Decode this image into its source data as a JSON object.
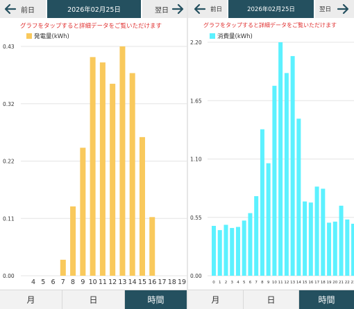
{
  "left": {
    "prev_label": "前日",
    "date": "2026年02月25日",
    "next_label": "翌日",
    "notice": "グラフをタップすると詳細データをご覧いただけます",
    "chart_data": {
      "type": "bar",
      "legend": "発電量(kWh)",
      "color": "#f9c95c",
      "ylim": [
        0,
        0.43
      ],
      "yticks": [
        "0.43",
        "0.32",
        "0.22",
        "0.11",
        "0.00"
      ],
      "categories": [
        "4",
        "5",
        "6",
        "7",
        "8",
        "9",
        "10",
        "11",
        "12",
        "13",
        "14",
        "15",
        "16",
        "17",
        "18",
        "19"
      ],
      "series": [
        {
          "name": "発電量(kWh)",
          "values": [
            0,
            0,
            0,
            0.03,
            0.13,
            0.24,
            0.41,
            0.4,
            0.36,
            0.43,
            0.38,
            0.26,
            0.11,
            0,
            0,
            0
          ]
        }
      ]
    },
    "tabs": [
      {
        "label": "月",
        "active": false
      },
      {
        "label": "日",
        "active": false
      },
      {
        "label": "時間",
        "active": true
      }
    ]
  },
  "right": {
    "prev_label": "前日",
    "date": "2026年02月25日",
    "next_label": "翌日",
    "notice": "グラフをタップすると詳細データをご覧いただけます",
    "chart_data": {
      "type": "bar",
      "legend": "消費量(kWh)",
      "color": "#5cf1ff",
      "ylim": [
        0,
        2.2
      ],
      "yticks": [
        "2.20",
        "1.65",
        "1.10",
        "0.55",
        "0.00"
      ],
      "categories": [
        "0",
        "1",
        "2",
        "3",
        "4",
        "5",
        "6",
        "7",
        "8",
        "9",
        "10",
        "11",
        "12",
        "13",
        "14",
        "15",
        "16",
        "17",
        "18",
        "19",
        "20",
        "21",
        "22",
        "23"
      ],
      "series": [
        {
          "name": "消費量(kWh)",
          "values": [
            0.47,
            0.43,
            0.48,
            0.45,
            0.46,
            0.52,
            0.59,
            0.75,
            1.38,
            1.06,
            1.79,
            2.2,
            1.91,
            2.07,
            1.48,
            0.7,
            0.69,
            0.84,
            0.82,
            0.5,
            0.51,
            0.66,
            0.53,
            0.49
          ]
        }
      ]
    },
    "tabs": [
      {
        "label": "月",
        "active": false
      },
      {
        "label": "日",
        "active": false
      },
      {
        "label": "時間",
        "active": true
      }
    ]
  }
}
